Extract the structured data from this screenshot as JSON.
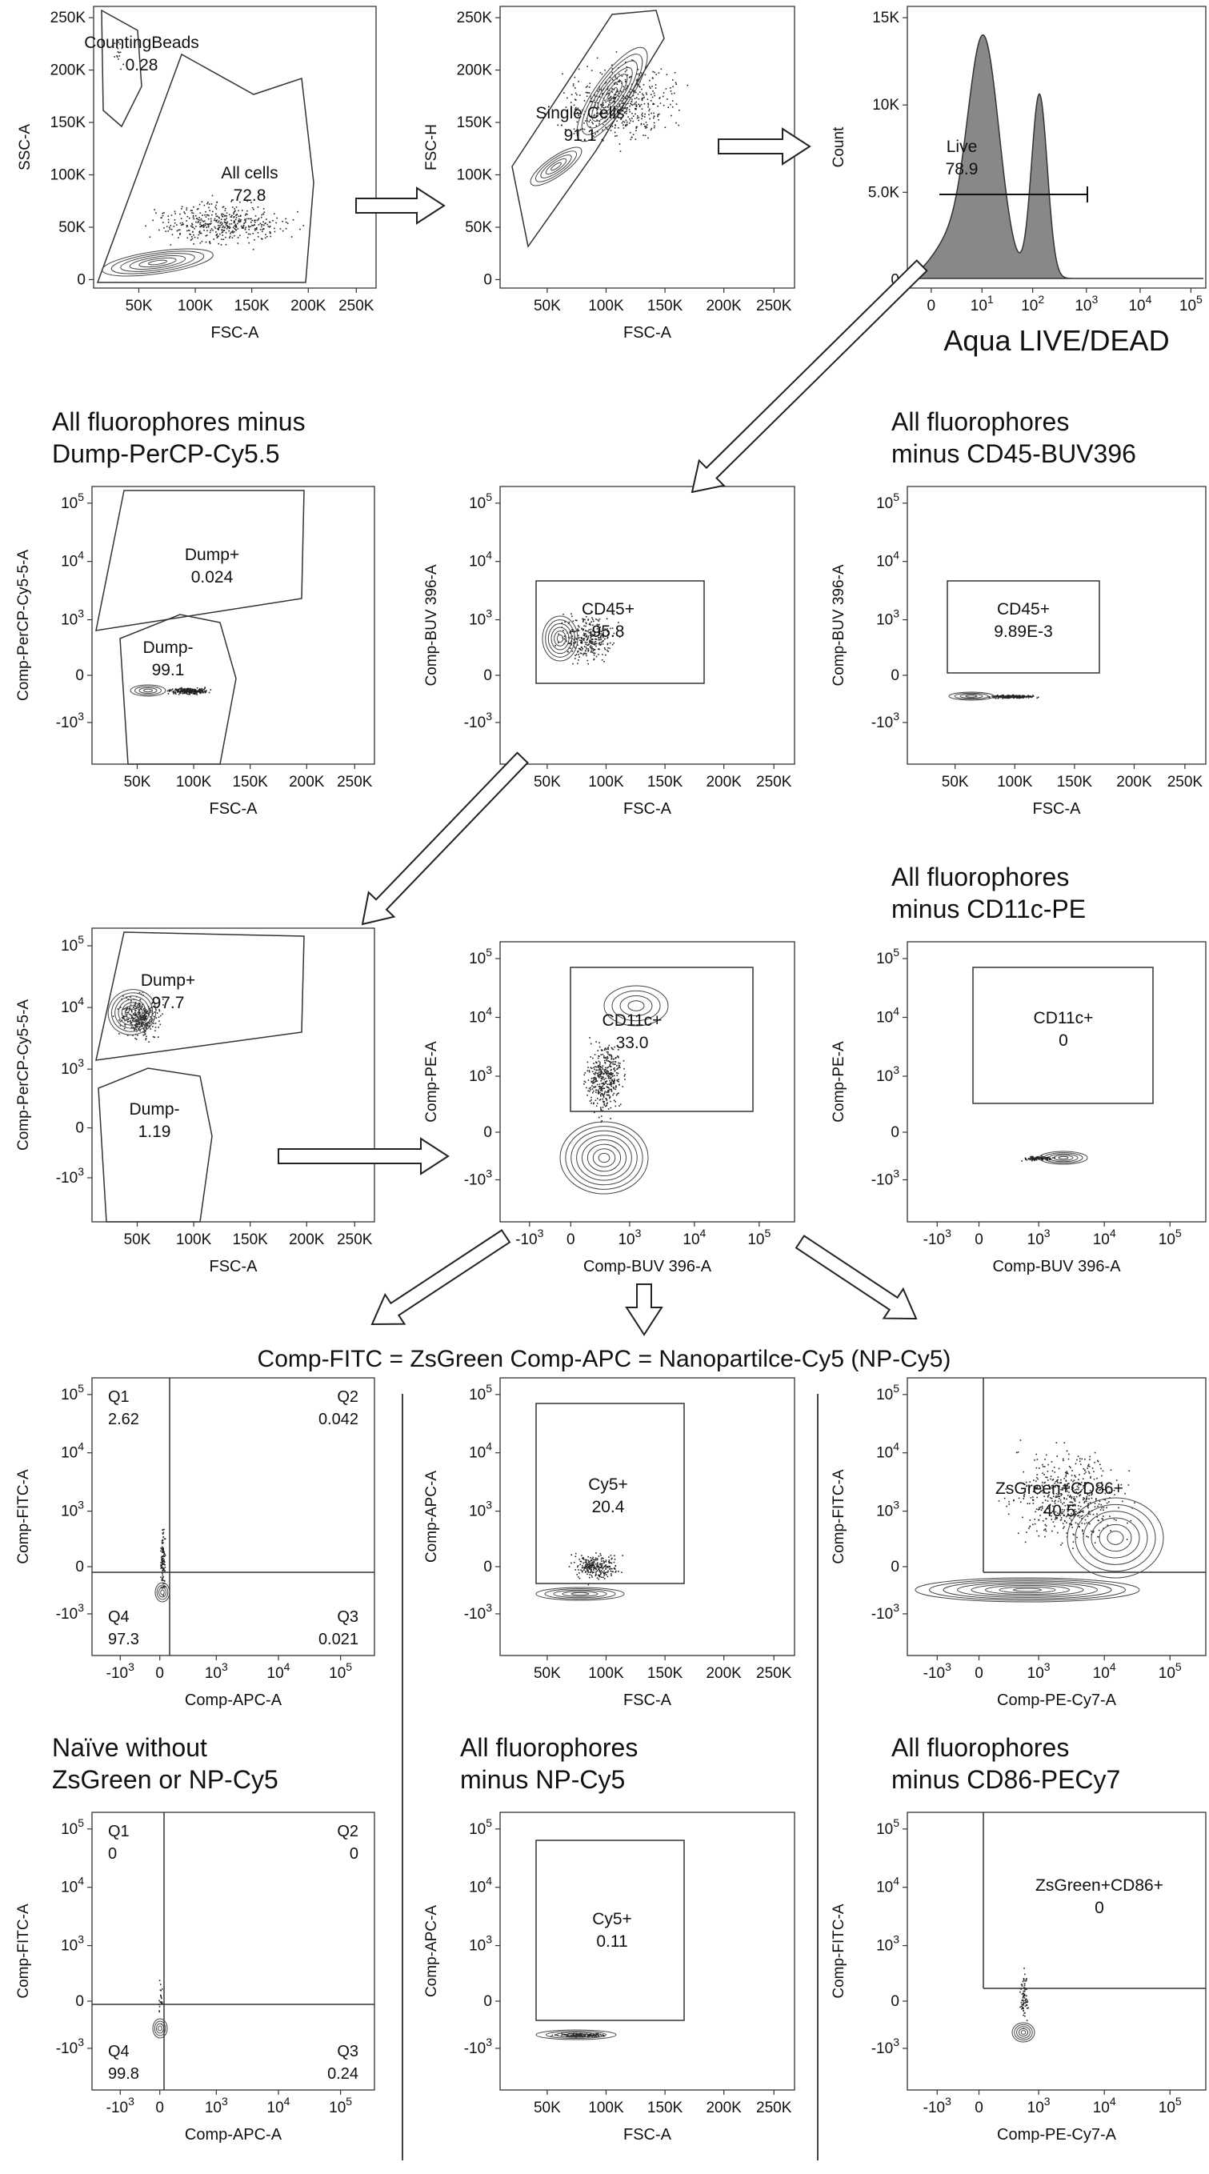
{
  "panels": [
    {
      "id": "p1",
      "ylabel": "SSC-A",
      "xlabel": "FSC-A",
      "yticks": [
        "250K",
        "200K",
        "150K",
        "100K",
        "50K",
        "0"
      ],
      "xticks": [
        "50K",
        "100K",
        "150K",
        "200K",
        "250K"
      ],
      "gates": [
        {
          "name": "CountingBeads",
          "value": "0.28"
        },
        {
          "name": "All cells",
          "value": "72.8"
        }
      ]
    },
    {
      "id": "p2",
      "ylabel": "FSC-H",
      "xlabel": "FSC-A",
      "yticks": [
        "250K",
        "200K",
        "150K",
        "100K",
        "50K",
        "0"
      ],
      "xticks": [
        "50K",
        "100K",
        "150K",
        "200K",
        "250K"
      ],
      "gates": [
        {
          "name": "Single Cells",
          "value": "91.1"
        }
      ]
    },
    {
      "id": "p3",
      "ylabel": "Count",
      "xlabel": "Aqua LIVE/DEAD",
      "yticks": [
        "15K",
        "10K",
        "5.0K",
        "0"
      ],
      "xticks": [
        "0",
        "10^1",
        "10^2",
        "10^3",
        "10^4",
        "10^5"
      ],
      "gates": [
        {
          "name": "Live",
          "value": "78.9"
        }
      ]
    },
    {
      "id": "p4",
      "title": [
        "All fluorophores minus",
        "Dump-PerCP-Cy5.5"
      ],
      "ylabel": "Comp-PerCP-Cy5-5-A",
      "xlabel": "FSC-A",
      "yticks": [
        "10^5",
        "10^4",
        "10^3",
        "0",
        "-10^3"
      ],
      "xticks": [
        "50K",
        "100K",
        "150K",
        "200K",
        "250K"
      ],
      "gates": [
        {
          "name": "Dump+",
          "value": "0.024"
        },
        {
          "name": "Dump-",
          "value": "99.1"
        }
      ]
    },
    {
      "id": "p5",
      "ylabel": "Comp-BUV 396-A",
      "xlabel": "FSC-A",
      "yticks": [
        "10^5",
        "10^4",
        "10^3",
        "0",
        "-10^3"
      ],
      "xticks": [
        "50K",
        "100K",
        "150K",
        "200K",
        "250K"
      ],
      "gates": [
        {
          "name": "CD45+",
          "value": "95.8"
        }
      ]
    },
    {
      "id": "p6",
      "title": [
        "All fluorophores",
        "minus CD45-BUV396"
      ],
      "ylabel": "Comp-BUV 396-A",
      "xlabel": "FSC-A",
      "yticks": [
        "10^5",
        "10^4",
        "10^3",
        "0",
        "-10^3"
      ],
      "xticks": [
        "50K",
        "100K",
        "150K",
        "200K",
        "250K"
      ],
      "gates": [
        {
          "name": "CD45+",
          "value": "9.89E-3"
        }
      ]
    },
    {
      "id": "p7",
      "ylabel": "Comp-PerCP-Cy5-5-A",
      "xlabel": "FSC-A",
      "yticks": [
        "10^5",
        "10^4",
        "10^3",
        "0",
        "-10^3"
      ],
      "xticks": [
        "50K",
        "100K",
        "150K",
        "200K",
        "250K"
      ],
      "gates": [
        {
          "name": "Dump+",
          "value": "97.7"
        },
        {
          "name": "Dump-",
          "value": "1.19"
        }
      ]
    },
    {
      "id": "p8",
      "ylabel": "Comp-PE-A",
      "xlabel": "Comp-BUV 396-A",
      "yticks": [
        "10^5",
        "10^4",
        "10^3",
        "0",
        "-10^3"
      ],
      "xticks": [
        "-10^3",
        "0",
        "10^3",
        "10^4",
        "10^5"
      ],
      "gates": [
        {
          "name": "CD11c+",
          "value": "33.0"
        }
      ]
    },
    {
      "id": "p9",
      "title": [
        "All fluorophores",
        "minus CD11c-PE"
      ],
      "ylabel": "Comp-PE-A",
      "xlabel": "Comp-BUV 396-A",
      "yticks": [
        "10^5",
        "10^4",
        "10^3",
        "0",
        "-10^3"
      ],
      "xticks": [
        "-10^3",
        "0",
        "10^3",
        "10^4",
        "10^5"
      ],
      "gates": [
        {
          "name": "CD11c+",
          "value": "0"
        }
      ]
    },
    {
      "id": "p10",
      "ylabel": "Comp-FITC-A",
      "xlabel": "Comp-APC-A",
      "yticks": [
        "10^5",
        "10^4",
        "10^3",
        "0",
        "-10^3"
      ],
      "xticks": [
        "-10^3",
        "0",
        "10^3",
        "10^4",
        "10^5"
      ],
      "quadrants": [
        {
          "name": "Q1",
          "value": "2.62"
        },
        {
          "name": "Q2",
          "value": "0.042"
        },
        {
          "name": "Q4",
          "value": "97.3"
        },
        {
          "name": "Q3",
          "value": "0.021"
        }
      ]
    },
    {
      "id": "p11",
      "ylabel": "Comp-APC-A",
      "xlabel": "FSC-A",
      "yticks": [
        "10^5",
        "10^4",
        "10^3",
        "0",
        "-10^3"
      ],
      "xticks": [
        "50K",
        "100K",
        "150K",
        "200K",
        "250K"
      ],
      "gates": [
        {
          "name": "Cy5+",
          "value": "20.4"
        }
      ]
    },
    {
      "id": "p12",
      "ylabel": "Comp-FITC-A",
      "xlabel": "Comp-PE-Cy7-A",
      "yticks": [
        "10^5",
        "10^4",
        "10^3",
        "0",
        "-10^3"
      ],
      "xticks": [
        "-10^3",
        "0",
        "10^3",
        "10^4",
        "10^5"
      ],
      "gates": [
        {
          "name": "ZsGreen+CD86+",
          "value": "40.5"
        }
      ]
    },
    {
      "id": "p13",
      "title": [
        "Naïve without",
        "ZsGreen or NP-Cy5"
      ],
      "ylabel": "Comp-FITC-A",
      "xlabel": "Comp-APC-A",
      "yticks": [
        "10^5",
        "10^4",
        "10^3",
        "0",
        "-10^3"
      ],
      "xticks": [
        "-10^3",
        "0",
        "10^3",
        "10^4",
        "10^5"
      ],
      "quadrants": [
        {
          "name": "Q1",
          "value": "0"
        },
        {
          "name": "Q2",
          "value": "0"
        },
        {
          "name": "Q4",
          "value": "99.8"
        },
        {
          "name": "Q3",
          "value": "0.24"
        }
      ]
    },
    {
      "id": "p14",
      "title": [
        "All fluorophores",
        "minus NP-Cy5"
      ],
      "ylabel": "Comp-APC-A",
      "xlabel": "FSC-A",
      "yticks": [
        "10^5",
        "10^4",
        "10^3",
        "0",
        "-10^3"
      ],
      "xticks": [
        "50K",
        "100K",
        "150K",
        "200K",
        "250K"
      ],
      "gates": [
        {
          "name": "Cy5+",
          "value": "0.11"
        }
      ]
    },
    {
      "id": "p15",
      "title": [
        "All fluorophores",
        "minus CD86-PECy7"
      ],
      "ylabel": "Comp-FITC-A",
      "xlabel": "Comp-PE-Cy7-A",
      "yticks": [
        "10^5",
        "10^4",
        "10^3",
        "0",
        "-10^3"
      ],
      "xticks": [
        "-10^3",
        "0",
        "10^3",
        "10^4",
        "10^5"
      ],
      "gates": [
        {
          "name": "ZsGreen+CD86+",
          "value": "0"
        }
      ]
    }
  ],
  "legend_line": "Comp-FITC = ZsGreen   Comp-APC = Nanopartilce-Cy5 (NP-Cy5)"
}
